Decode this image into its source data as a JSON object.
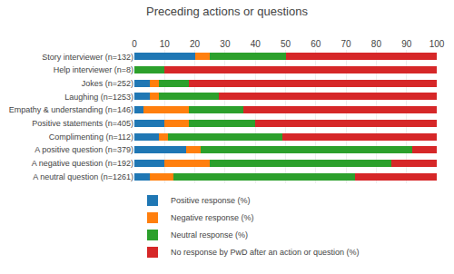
{
  "chart_data": {
    "type": "bar",
    "orientation": "horizontal",
    "stacked": true,
    "title": "Preceding actions or questions",
    "categories": [
      "Story interviewer (n=132)",
      "Help interviewer (n=8)",
      "Jokes (n=252)",
      "Laughing (n=1253)",
      "Empathy & understanding (n=146)",
      "Positive statements (n=405)",
      "Complimenting (n=112)",
      "A positive question (n=379)",
      "A negative question (n=192)",
      "A neutral question (n=1261)"
    ],
    "series": [
      {
        "name": "Positive response (%)",
        "values": [
          20,
          0,
          5,
          5,
          3,
          10,
          8,
          17,
          10,
          5
        ]
      },
      {
        "name": "Negative response (%)",
        "values": [
          5,
          0,
          3,
          3,
          15,
          8,
          3,
          5,
          15,
          8
        ]
      },
      {
        "name": "Neutral response (%)",
        "values": [
          25,
          10,
          10,
          20,
          18,
          22,
          38,
          70,
          60,
          60
        ]
      },
      {
        "name": "No response by PwD after an action or question (%)",
        "values": [
          50,
          90,
          82,
          72,
          64,
          60,
          51,
          8,
          15,
          27
        ]
      }
    ],
    "xlim": [
      0,
      100
    ],
    "xticks": [
      0,
      10,
      20,
      30,
      40,
      50,
      60,
      70,
      80,
      90,
      100
    ],
    "grid": true,
    "legend": "lower left"
  }
}
